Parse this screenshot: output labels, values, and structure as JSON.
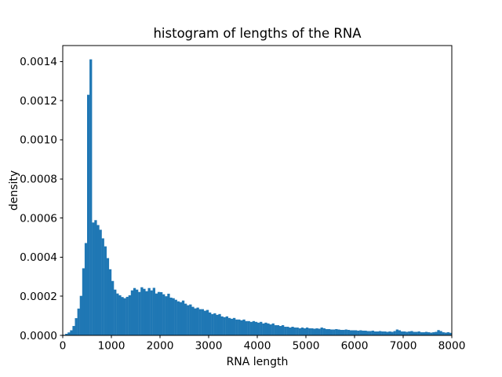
{
  "chart_data": {
    "type": "bar",
    "subtype": "histogram",
    "title": "histogram of lengths of the RNA",
    "xlabel": "RNA length",
    "ylabel": "density",
    "bar_color": "#1f77b4",
    "background_color": "#ffffff",
    "text_color": "#000000",
    "grid": false,
    "legend": "none",
    "xlim": [
      0,
      8000
    ],
    "ylim": [
      0,
      0.0014816
    ],
    "x_tick_values": [
      0,
      1000,
      2000,
      3000,
      4000,
      5000,
      6000,
      7000,
      8000
    ],
    "x_tick_labels": [
      "0",
      "1000",
      "2000",
      "3000",
      "4000",
      "5000",
      "6000",
      "7000",
      "8000"
    ],
    "y_tick_values": [
      0,
      0.0002,
      0.0004,
      0.0006,
      0.0008,
      0.001,
      0.0012,
      0.0014
    ],
    "y_tick_labels": [
      "0.0000",
      "0.0002",
      "0.0004",
      "0.0006",
      "0.0008",
      "0.0010",
      "0.0012",
      "0.0014"
    ],
    "bin_start": 0,
    "bin_width": 50,
    "peak_density": 0.001411,
    "peak_bin": [
      550,
      600
    ],
    "densities": [
      3e-06,
      8e-06,
      1.5e-05,
      2.6e-05,
      4.8e-05,
      8.8e-05,
      0.000137,
      0.000202,
      0.000343,
      0.000472,
      0.00123,
      0.001411,
      0.000577,
      0.000589,
      0.000564,
      0.00054,
      0.000496,
      0.000455,
      0.000395,
      0.000338,
      0.000278,
      0.000234,
      0.000214,
      0.000205,
      0.000196,
      0.00019,
      0.000197,
      0.000205,
      0.00023,
      0.000242,
      0.000234,
      0.000222,
      0.000246,
      0.000238,
      0.000226,
      0.000242,
      0.00023,
      0.000243,
      0.000214,
      0.000222,
      0.000221,
      0.00021,
      0.0002,
      0.000213,
      0.000193,
      0.00019,
      0.000182,
      0.000174,
      0.00017,
      0.000178,
      0.000162,
      0.000154,
      0.000158,
      0.000146,
      0.000138,
      0.000142,
      0.000134,
      0.000134,
      0.000126,
      0.00013,
      0.000117,
      0.000109,
      0.000113,
      0.000105,
      0.000109,
      9.7e-05,
      9.3e-05,
      9.7e-05,
      8.9e-05,
      8.5e-05,
      8.9e-05,
      8.1e-05,
      8.1e-05,
      7.7e-05,
      8.1e-05,
      7.3e-05,
      7.3e-05,
      6.9e-05,
      7.3e-05,
      6.9e-05,
      6.5e-05,
      6.9e-05,
      6.1e-05,
      6.5e-05,
      6.1e-05,
      5.6e-05,
      6.1e-05,
      5.2e-05,
      5.2e-05,
      4.8e-05,
      5.2e-05,
      4.4e-05,
      4.4e-05,
      4e-05,
      4.4e-05,
      4e-05,
      4e-05,
      3.6e-05,
      4e-05,
      3.6e-05,
      4e-05,
      3.6e-05,
      3.6e-05,
      3.4e-05,
      3.6e-05,
      3.4e-05,
      4e-05,
      3.6e-05,
      3.2e-05,
      3.2e-05,
      3e-05,
      3e-05,
      3.2e-05,
      3e-05,
      2.8e-05,
      2.8e-05,
      3e-05,
      2.8e-05,
      2.6e-05,
      2.6e-05,
      2.6e-05,
      2.4e-05,
      2.6e-05,
      2.4e-05,
      2.4e-05,
      2.2e-05,
      2.2e-05,
      2.4e-05,
      2e-05,
      2e-05,
      2.2e-05,
      2e-05,
      2e-05,
      1.8e-05,
      2e-05,
      1.8e-05,
      2.2e-05,
      3e-05,
      2.6e-05,
      2e-05,
      2e-05,
      1.8e-05,
      2e-05,
      2.2e-05,
      1.8e-05,
      1.8e-05,
      2e-05,
      1.6e-05,
      1.6e-05,
      1.8e-05,
      1.6e-05,
      1.4e-05,
      1.6e-05,
      1.8e-05,
      2.7e-05,
      2.2e-05,
      1.6e-05,
      1.4e-05,
      1.6e-05,
      1.3e-05
    ]
  }
}
